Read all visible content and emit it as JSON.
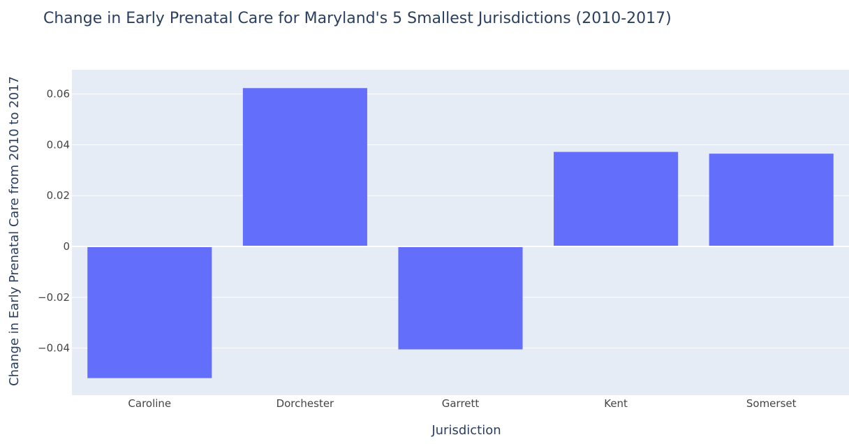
{
  "chart_data": {
    "type": "bar",
    "title": "Change in Early Prenatal Care for Maryland's 5 Smallest Jurisdictions (2010-2017)",
    "xlabel": "Jurisdiction",
    "ylabel": "Change in Early Prenatal Care from 2010 to 2017",
    "categories": [
      "Caroline",
      "Dorchester",
      "Garrett",
      "Kent",
      "Somerset"
    ],
    "values": [
      -0.0518,
      0.0623,
      -0.0405,
      0.0372,
      0.0365
    ],
    "ylim": [
      -0.0585,
      0.0695
    ],
    "yticks": [
      {
        "value": 0.06,
        "label": "0.06"
      },
      {
        "value": 0.04,
        "label": "0.04"
      },
      {
        "value": 0.02,
        "label": "0.02"
      },
      {
        "value": 0,
        "label": "0"
      },
      {
        "value": -0.02,
        "label": "−0.02"
      },
      {
        "value": -0.04,
        "label": "−0.04"
      }
    ],
    "grid": true,
    "colors": {
      "bar": "#636efa",
      "plot_background": "#e5ecf6",
      "grid": "#ffffff",
      "text": "#2a3f5f",
      "tick_text": "#444444"
    }
  }
}
